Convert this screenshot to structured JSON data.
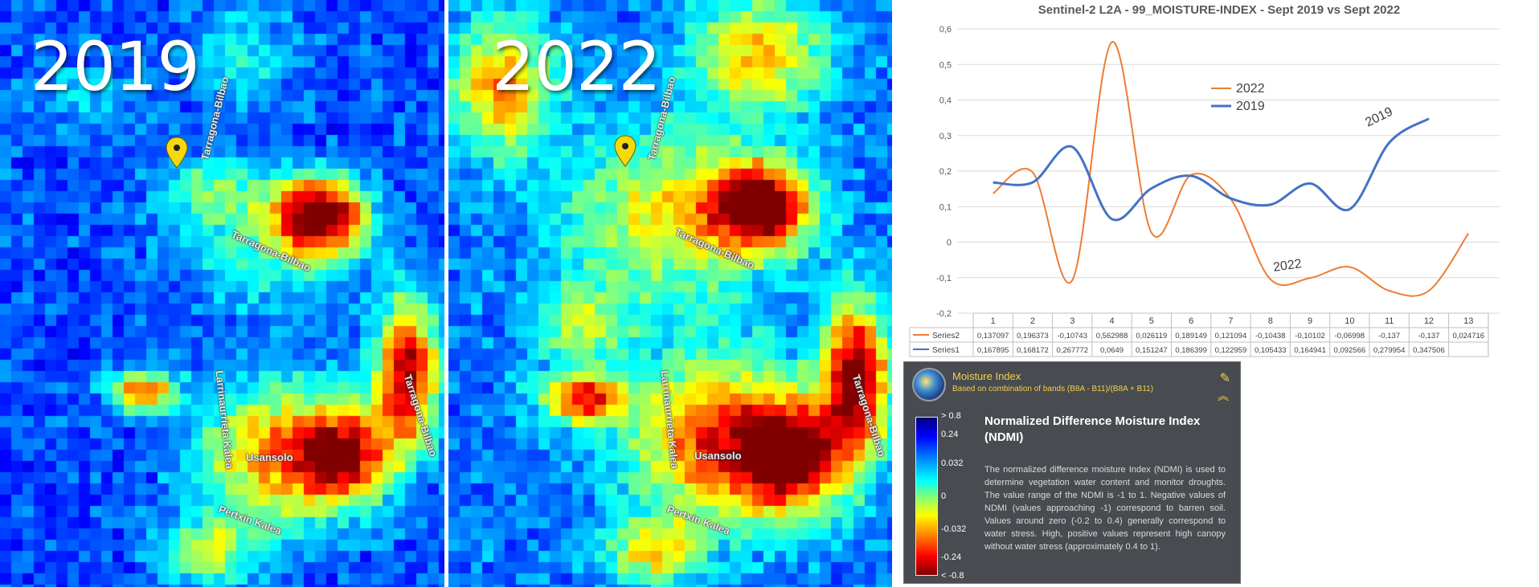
{
  "maps": {
    "left": {
      "year": "2019",
      "roads": [
        "Tarragona-Bilbao",
        "Tarragona-Bilbao",
        "Larrinaurrieta Kalea",
        "Tarragona-Bilbao",
        "Usansolo",
        "Pertxin Kalea"
      ]
    },
    "right": {
      "year": "2022",
      "roads": [
        "Tarragona-Bilbao",
        "Tarragona-Bilbao",
        "Larrinaurrieta Kalea",
        "Tarragona-Bilbao",
        "Usansolo",
        "Pertxin Kalea"
      ]
    },
    "pin_color": "#f5d90a"
  },
  "chart_data": {
    "type": "line",
    "title": "Sentinel-2 L2A - 99_MOISTURE-INDEX - Sept 2019 vs Sept 2022",
    "categories": [
      "1",
      "2",
      "3",
      "4",
      "5",
      "6",
      "7",
      "8",
      "9",
      "10",
      "11",
      "12",
      "13"
    ],
    "y_ticks": [
      "0,6",
      "0,5",
      "0,4",
      "0,3",
      "0,2",
      "0,1",
      "0",
      "-0,1",
      "-0,2"
    ],
    "ylim": [
      -0.2,
      0.6
    ],
    "grid": true,
    "legend_position": "top-center",
    "legend": [
      {
        "label": "2022",
        "color": "#ed7d31"
      },
      {
        "label": "2019",
        "color": "#4472c4"
      }
    ],
    "annotations": [
      "2019",
      "2022"
    ],
    "series": [
      {
        "name": "Series2",
        "color": "#ed7d31",
        "values": [
          0.137097,
          0.196373,
          -0.10743,
          0.562988,
          0.026119,
          0.189149,
          0.121094,
          -0.10438,
          -0.10102,
          -0.06998,
          -0.137,
          -0.137,
          0.024716
        ],
        "labels": [
          "0,137097",
          "0,196373",
          "-0,10743",
          "0,562988",
          "0,026119",
          "0,189149",
          "0,121094",
          "-0,10438",
          "-0,10102",
          "-0,06998",
          "-0,137",
          "-0,137",
          "0,024716"
        ]
      },
      {
        "name": "Series1",
        "color": "#4472c4",
        "values": [
          0.167895,
          0.168172,
          0.267772,
          0.0649,
          0.151247,
          0.186399,
          0.122959,
          0.105433,
          0.164941,
          0.092566,
          0.279954,
          0.347506,
          null
        ],
        "labels": [
          "0,167895",
          "0,168172",
          "0,267772",
          "0,0649",
          "0,151247",
          "0,186399",
          "0,122959",
          "0,105433",
          "0,164941",
          "0,092566",
          "0,279954",
          "0,347506",
          ""
        ]
      }
    ]
  },
  "legend_panel": {
    "title": "Moisture Index",
    "subtitle": "Based on combination of bands (B8A - B11)/(B8A + B11)",
    "heading": "Normalized Difference Moisture Index (NDMI)",
    "description": "The normalized difference moisture Index (NDMI) is used to determine vegetation water content and monitor droughts. The value range of the NDMI is -1 to 1. Negative values of NDMI (values approaching -1) correspond to barren soil. Values around zero (-0.2 to 0.4) generally correspond to water stress. High, positive values represent high canopy without water stress (approximately 0.4 to 1).",
    "scale_labels": [
      "> 0.8",
      "0.24",
      "0.032",
      "0",
      "-0.032",
      "-0.24",
      "< -0.8"
    ],
    "edit_icon": "edit-icon",
    "collapse_icon": "double-chevron-up-icon"
  }
}
